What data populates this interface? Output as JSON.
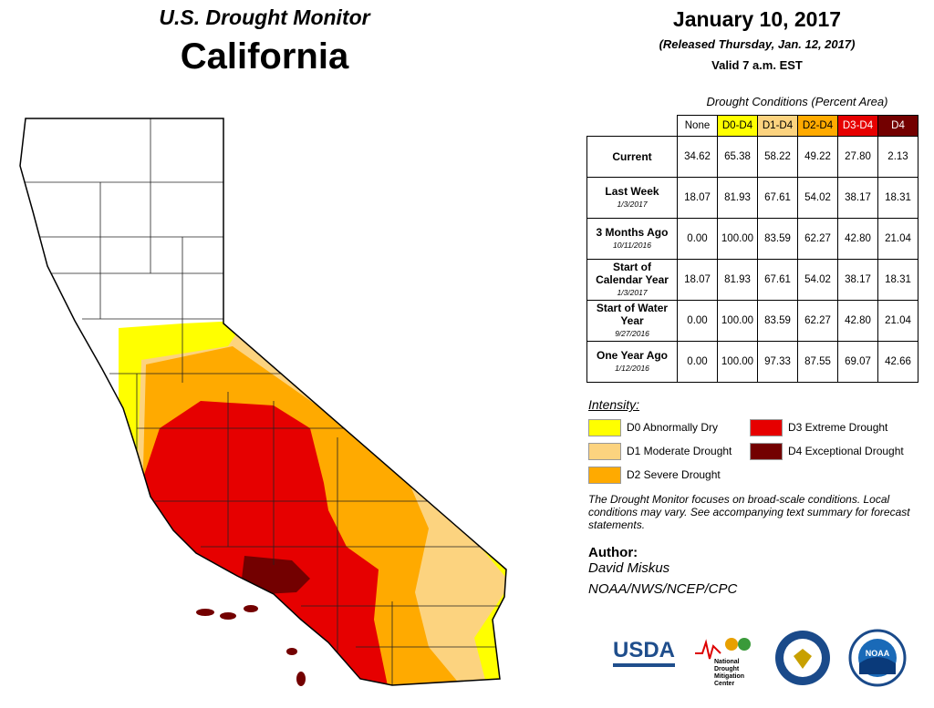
{
  "header": {
    "title": "U.S. Drought Monitor",
    "state": "California",
    "date": "January 10, 2017",
    "released": "(Released Thursday, Jan. 12, 2017)",
    "valid": "Valid 7 a.m. EST"
  },
  "table": {
    "caption": "Drought Conditions (Percent Area)",
    "columns": [
      "None",
      "D0-D4",
      "D1-D4",
      "D2-D4",
      "D3-D4",
      "D4"
    ],
    "column_colors": [
      "#ffffff",
      "#ffff00",
      "#fcd37f",
      "#ffaa00",
      "#e60000",
      "#730000"
    ],
    "column_text_colors": [
      "#000000",
      "#000000",
      "#000000",
      "#000000",
      "#ffffff",
      "#ffffff"
    ],
    "rows": [
      {
        "label": "Current",
        "values": [
          "34.62",
          "65.38",
          "58.22",
          "49.22",
          "27.80",
          "2.13"
        ]
      },
      {
        "label": "Last Week",
        "date": "1/3/2017",
        "values": [
          "18.07",
          "81.93",
          "67.61",
          "54.02",
          "38.17",
          "18.31"
        ]
      },
      {
        "label": "3 Months Ago",
        "date": "10/11/2016",
        "values": [
          "0.00",
          "100.00",
          "83.59",
          "62.27",
          "42.80",
          "21.04"
        ]
      },
      {
        "label": "Start of Calendar Year",
        "date": "1/3/2017",
        "values": [
          "18.07",
          "81.93",
          "67.61",
          "54.02",
          "38.17",
          "18.31"
        ]
      },
      {
        "label": "Start of Water Year",
        "date": "9/27/2016",
        "values": [
          "0.00",
          "100.00",
          "83.59",
          "62.27",
          "42.80",
          "21.04"
        ]
      },
      {
        "label": "One Year Ago",
        "date": "1/12/2016",
        "values": [
          "0.00",
          "100.00",
          "97.33",
          "87.55",
          "69.07",
          "42.66"
        ]
      }
    ]
  },
  "legend": {
    "title": "Intensity:",
    "items": [
      {
        "label": "D0 Abnormally Dry",
        "color": "#ffff00"
      },
      {
        "label": "D1 Moderate Drought",
        "color": "#fcd37f"
      },
      {
        "label": "D2 Severe Drought",
        "color": "#ffaa00"
      },
      {
        "label": "D3 Extreme Drought",
        "color": "#e60000"
      },
      {
        "label": "D4 Exceptional Drought",
        "color": "#730000"
      }
    ]
  },
  "note": "The Drought Monitor focuses on broad-scale conditions. Local conditions may vary. See accompanying text summary for forecast statements.",
  "author": {
    "heading": "Author:",
    "name": "David Miskus",
    "org": "NOAA/NWS/NCEP/CPC"
  },
  "logos": {
    "usda": "USDA",
    "ndmc": "National Drought Mitigation Center",
    "noaa": "NOAA"
  }
}
